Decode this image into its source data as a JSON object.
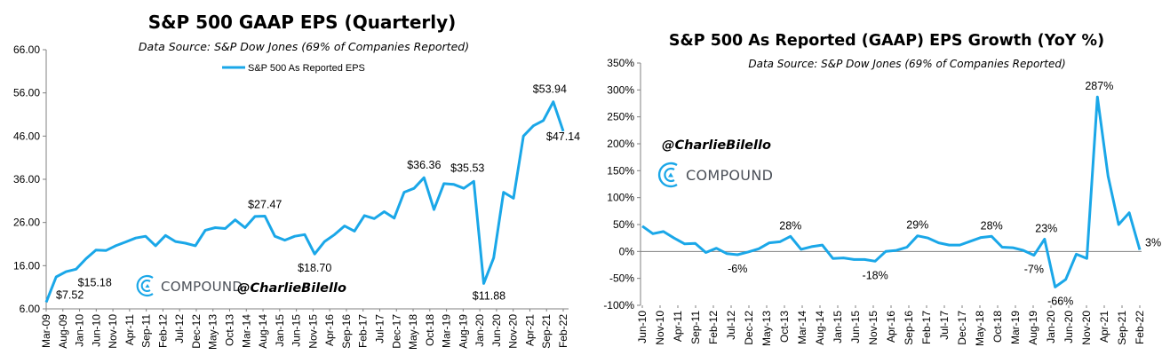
{
  "colors": {
    "line": "#1aa7e8",
    "axis": "#808080",
    "grid": "#d9d9d9",
    "brand": "#4a4f57",
    "brand_icon": "#1aa7e8"
  },
  "watermark": {
    "brand_name": "COMPOUND",
    "handle": "@CharlieBilello"
  },
  "chart_data": [
    {
      "type": "line",
      "title": "S&P 500 GAAP EPS (Quarterly)",
      "subtitle": "Data Source: S&P Dow Jones (69% of Companies Reported)",
      "legend": {
        "label": "S&P 500 As Reported EPS",
        "position": "top-center"
      },
      "ylim": [
        6,
        66
      ],
      "y_ticks": [
        "6.00",
        "16.00",
        "26.00",
        "36.00",
        "46.00",
        "56.00",
        "66.00"
      ],
      "x_tick_labels": [
        "Mar-09",
        "Aug-09",
        "Jan-10",
        "Jun-10",
        "Nov-10",
        "Apr-11",
        "Sep-11",
        "Feb-12",
        "Jul-12",
        "Dec-12",
        "May-13",
        "Oct-13",
        "Mar-14",
        "Aug-14",
        "Jan-15",
        "Jun-15",
        "Nov-15",
        "Apr-16",
        "Sep-16",
        "Feb-17",
        "Jul-17",
        "Dec-17",
        "May-18",
        "Oct-18",
        "Mar-19",
        "Aug-19",
        "Jan-20",
        "Jun-20",
        "Nov-20",
        "Apr-21",
        "Sep-21",
        "Feb-22"
      ],
      "values": [
        7.52,
        13.4,
        14.6,
        15.18,
        17.6,
        19.6,
        19.5,
        20.6,
        21.5,
        22.4,
        22.8,
        20.6,
        23.0,
        21.6,
        21.2,
        20.6,
        24.2,
        24.8,
        24.6,
        26.6,
        24.8,
        27.4,
        27.47,
        22.8,
        21.9,
        22.8,
        23.2,
        18.7,
        21.6,
        23.2,
        25.2,
        24.0,
        27.6,
        26.9,
        28.5,
        27.0,
        33.0,
        33.9,
        36.36,
        29.0,
        35.0,
        34.8,
        33.9,
        35.53,
        11.88,
        17.8,
        33.0,
        31.6,
        46.0,
        48.4,
        49.6,
        53.94,
        47.14
      ],
      "grid": false,
      "data_labels": [
        {
          "i": 0,
          "text": "$7.52"
        },
        {
          "i": 3,
          "text": "$15.18"
        },
        {
          "i": 22,
          "text": "$27.47"
        },
        {
          "i": 27,
          "text": "$18.70"
        },
        {
          "i": 38,
          "text": "$36.36"
        },
        {
          "i": 43,
          "text": "$35.53"
        },
        {
          "i": 44,
          "text": "$11.88"
        },
        {
          "i": 51,
          "text": "$53.94"
        },
        {
          "i": 52,
          "text": "$47.14"
        }
      ]
    },
    {
      "type": "line",
      "title": "S&P 500 As Reported (GAAP) EPS Growth (YoY %)",
      "subtitle": "Data Source: S&P Dow Jones (69% of Companies Reported)",
      "ylim": [
        -100,
        350
      ],
      "y_ticks": [
        "-100%",
        "-50%",
        "0%",
        "50%",
        "100%",
        "150%",
        "200%",
        "250%",
        "300%",
        "350%"
      ],
      "x_tick_labels": [
        "Jun-10",
        "Nov-10",
        "Apr-11",
        "Sep-11",
        "Feb-12",
        "Jul-12",
        "Dec-12",
        "May-13",
        "Oct-13",
        "Mar-14",
        "Aug-14",
        "Jan-15",
        "Jun-15",
        "Nov-15",
        "Apr-16",
        "Sep-16",
        "Feb-17",
        "Jul-17",
        "Dec-17",
        "May-18",
        "Oct-18",
        "Mar-19",
        "Aug-19",
        "Jan-20",
        "Jun-20",
        "Nov-20",
        "Apr-21",
        "Sep-21",
        "Feb-22"
      ],
      "values": [
        47,
        33,
        37,
        25,
        14,
        15,
        -2,
        6,
        -4,
        -6,
        -1,
        5,
        16,
        18,
        28,
        4,
        9,
        12,
        -13,
        -12,
        -15,
        -15,
        -18,
        0,
        2,
        8,
        29,
        25,
        16,
        12,
        12,
        19,
        26,
        28,
        8,
        7,
        2,
        -7,
        23,
        -66,
        -52,
        -5,
        -13,
        287,
        140,
        50,
        72,
        3
      ],
      "grid": false,
      "data_labels": [
        {
          "i": 9,
          "text": "-6%"
        },
        {
          "i": 14,
          "text": "28%"
        },
        {
          "i": 22,
          "text": "-18%"
        },
        {
          "i": 26,
          "text": "29%"
        },
        {
          "i": 33,
          "text": "28%"
        },
        {
          "i": 37,
          "text": "-7%"
        },
        {
          "i": 38,
          "text": "23%"
        },
        {
          "i": 39,
          "text": "-66%"
        },
        {
          "i": 43,
          "text": "287%"
        },
        {
          "i": 47,
          "text": "3%"
        }
      ]
    }
  ]
}
